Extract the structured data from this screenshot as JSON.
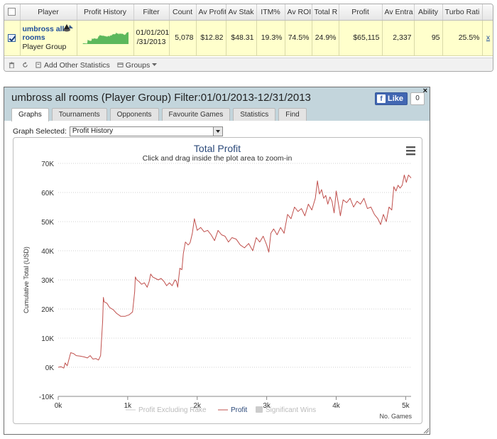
{
  "table": {
    "headers": [
      "Player",
      "Profit History",
      "Filter",
      "Count",
      "Av Profit",
      "Av Stak",
      "ITM%",
      "Av ROI",
      "Total R",
      "Profit",
      "Av Entra",
      "Ability",
      "Turbo Rati"
    ],
    "row": {
      "player_name": "umbross all rooms",
      "player_type": "Player Group",
      "filter": "01/01/201\n/31/2013",
      "count": "5,078",
      "av_profit": "$12.82",
      "av_stake": "$48.31",
      "itm": "19.3%",
      "av_roi": "74.5%",
      "total_roi": "24.9%",
      "profit": "$65,115",
      "av_entrants": "2,337",
      "ability": "95",
      "turbo_ratio": "25.5%",
      "close": "x"
    }
  },
  "toolbar": {
    "add_stats": "Add Other Statistics",
    "groups": "Groups"
  },
  "window": {
    "title": "umbross all rooms (Player Group) Filter:01/01/2013-12/31/2013",
    "close": "×",
    "like_label": "Like",
    "like_count": "0",
    "tabs": [
      "Graphs",
      "Tournaments",
      "Opponents",
      "Favourite Games",
      "Statistics",
      "Find"
    ],
    "active_tab": 0,
    "graph_selected_label": "Graph Selected:",
    "graph_selected_value": "Profit History"
  },
  "colors": {
    "profit_line": "#c0504d",
    "spark_fill": "#5cb85c",
    "accent_link": "#1f4e9b",
    "header_band": "#c3d5dc"
  },
  "chart_data": {
    "type": "line",
    "title": "Total Profit",
    "subtitle": "Click and drag inside the plot area to zoom-in",
    "xlabel": "No. Games",
    "ylabel": "Cumulative Total (USD)",
    "xlim": [
      0,
      5078
    ],
    "ylim": [
      -10000,
      70000
    ],
    "x_tick_labels": [
      "0k",
      "1k",
      "2k",
      "3k",
      "4k",
      "5k"
    ],
    "y_tick_labels": [
      "-10K",
      "0K",
      "10K",
      "20K",
      "30K",
      "40K",
      "50K",
      "60K",
      "70K"
    ],
    "grid": true,
    "legend_position": "bottom",
    "legend": [
      "Profit Excluding Rake",
      "Profit",
      "Significant Wins"
    ],
    "series": [
      {
        "name": "Profit",
        "x": [
          0,
          40,
          80,
          100,
          130,
          180,
          220,
          260,
          320,
          380,
          420,
          460,
          500,
          540,
          580,
          610,
          640,
          650,
          660,
          700,
          740,
          790,
          840,
          900,
          960,
          1020,
          1070,
          1100,
          1110,
          1130,
          1160,
          1200,
          1240,
          1280,
          1310,
          1330,
          1360,
          1400,
          1440,
          1480,
          1520,
          1560,
          1600,
          1640,
          1680,
          1700,
          1720,
          1750,
          1780,
          1800,
          1830,
          1850,
          1870,
          1890,
          1900,
          1930,
          1960,
          2000,
          2050,
          2100,
          2150,
          2200,
          2250,
          2300,
          2350,
          2400,
          2450,
          2500,
          2560,
          2620,
          2680,
          2740,
          2800,
          2850,
          2900,
          2950,
          3000,
          3030,
          3060,
          3100,
          3150,
          3200,
          3250,
          3300,
          3350,
          3400,
          3450,
          3500,
          3550,
          3600,
          3650,
          3700,
          3730,
          3760,
          3790,
          3820,
          3850,
          3880,
          3910,
          3940,
          3970,
          4000,
          4030,
          4060,
          4100,
          4150,
          4200,
          4250,
          4300,
          4350,
          4400,
          4450,
          4500,
          4550,
          4600,
          4640,
          4680,
          4720,
          4760,
          4800,
          4830,
          4860,
          4890,
          4920,
          4950,
          4980,
          5010,
          5040,
          5078
        ],
        "values": [
          0,
          200,
          -300,
          1500,
          500,
          5000,
          4700,
          4000,
          3800,
          3500,
          3200,
          4000,
          2800,
          3000,
          2500,
          4000,
          16000,
          24000,
          22500,
          22000,
          20500,
          19800,
          18500,
          17500,
          17500,
          18000,
          19000,
          26000,
          31000,
          30000,
          29500,
          28500,
          29000,
          27500,
          29500,
          32000,
          31000,
          30500,
          30000,
          30500,
          29500,
          28000,
          29000,
          28000,
          30000,
          29500,
          27500,
          34000,
          33500,
          39000,
          43000,
          42500,
          42000,
          42500,
          43000,
          46000,
          51000,
          47000,
          48000,
          46500,
          47000,
          45500,
          43500,
          47000,
          45500,
          45000,
          43000,
          44500,
          44000,
          42000,
          41000,
          42500,
          40000,
          44500,
          43000,
          45000,
          42000,
          39500,
          46000,
          47500,
          45500,
          48000,
          46000,
          52500,
          51000,
          55000,
          53500,
          54500,
          52000,
          56000,
          54000,
          58000,
          64000,
          59500,
          61000,
          58000,
          59000,
          56000,
          58500,
          57000,
          53000,
          60500,
          56500,
          52000,
          57500,
          56500,
          58000,
          55000,
          57000,
          56000,
          58000,
          54500,
          55000,
          52500,
          51000,
          49000,
          52500,
          50000,
          55000,
          54000,
          62000,
          60500,
          62500,
          61500,
          62500,
          66000,
          63500,
          66000,
          65000
        ]
      }
    ]
  }
}
